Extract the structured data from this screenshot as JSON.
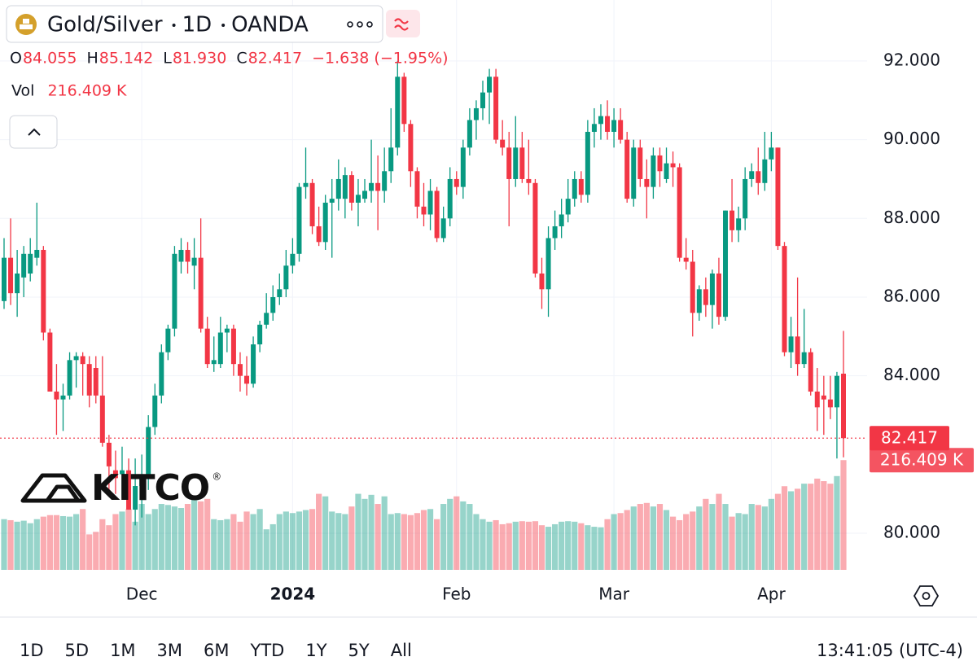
{
  "header": {
    "symbol": "Gold/Silver",
    "interval": "1D",
    "source": "OANDA"
  },
  "legend": {
    "items": [
      {
        "key": "O",
        "value": "84.055"
      },
      {
        "key": "H",
        "value": "85.142"
      },
      {
        "key": "L",
        "value": "81.930"
      },
      {
        "key": "C",
        "value": "82.417"
      }
    ],
    "change": "−1.638 (−1.95%)",
    "volume": {
      "key": "Vol",
      "value": "216.409 K"
    }
  },
  "logo": {
    "text": "KITCO",
    "mark": "®"
  },
  "chart_data": {
    "type": "candlestick",
    "categories": [
      null,
      null,
      null,
      null,
      null,
      null,
      null,
      null,
      null,
      null,
      null,
      null,
      null,
      null,
      null,
      null,
      null,
      null,
      null,
      null,
      null,
      "Dec",
      null,
      null,
      null,
      null,
      null,
      null,
      null,
      null,
      null,
      null,
      null,
      null,
      null,
      null,
      null,
      null,
      null,
      null,
      null,
      null,
      null,
      null,
      "2024",
      null,
      null,
      null,
      null,
      null,
      null,
      null,
      null,
      null,
      null,
      null,
      null,
      null,
      null,
      null,
      null,
      null,
      null,
      null,
      null,
      null,
      null,
      null,
      null,
      "Feb",
      null,
      null,
      null,
      null,
      null,
      null,
      null,
      null,
      null,
      null,
      null,
      null,
      null,
      null,
      null,
      null,
      null,
      null,
      null,
      null,
      null,
      null,
      null,
      "Mar",
      null,
      null,
      null,
      null,
      null,
      null,
      null,
      null,
      null,
      null,
      null,
      null,
      null,
      null,
      null,
      null,
      null,
      null,
      null,
      null,
      null,
      null,
      null,
      "Apr",
      null,
      null,
      null,
      null,
      null,
      null,
      null,
      null,
      null,
      null,
      null
    ],
    "candles": [
      [
        85.9,
        87.5,
        85.7,
        87.0
      ],
      [
        87.0,
        88.0,
        85.8,
        86.1
      ],
      [
        86.1,
        87.2,
        85.5,
        86.6
      ],
      [
        86.5,
        87.3,
        86.0,
        87.1
      ],
      [
        86.6,
        87.5,
        86.4,
        87.1
      ],
      [
        87.0,
        88.4,
        86.8,
        87.2
      ],
      [
        87.2,
        87.3,
        84.9,
        85.1
      ],
      [
        85.1,
        85.2,
        83.6,
        83.6
      ],
      [
        83.6,
        84.3,
        82.5,
        83.4
      ],
      [
        83.4,
        83.8,
        82.6,
        83.5
      ],
      [
        83.5,
        84.6,
        83.4,
        84.4
      ],
      [
        84.4,
        84.6,
        83.7,
        84.5
      ],
      [
        84.5,
        84.6,
        83.5,
        84.3
      ],
      [
        84.3,
        84.5,
        83.2,
        83.5
      ],
      [
        84.2,
        84.5,
        83.3,
        83.5
      ],
      [
        83.5,
        84.5,
        82.2,
        82.3
      ],
      [
        82.3,
        82.5,
        81.0,
        81.7
      ],
      [
        81.6,
        82.1,
        81.0,
        81.4
      ],
      [
        81.5,
        82.2,
        80.9,
        81.6
      ],
      [
        81.6,
        81.9,
        80.6,
        80.6
      ],
      [
        80.6,
        81.9,
        80.2,
        81.2
      ],
      [
        81.2,
        82.0,
        80.4,
        81.4
      ],
      [
        81.4,
        83.0,
        81.1,
        82.7
      ],
      [
        82.7,
        83.8,
        82.5,
        83.5
      ],
      [
        83.5,
        84.8,
        83.3,
        84.6
      ],
      [
        84.6,
        85.3,
        84.4,
        85.2
      ],
      [
        85.2,
        87.3,
        85.0,
        87.1
      ],
      [
        86.9,
        87.5,
        86.6,
        87.2
      ],
      [
        87.2,
        87.4,
        86.6,
        86.9
      ],
      [
        86.8,
        87.5,
        86.2,
        87.0
      ],
      [
        87.0,
        88.0,
        85.1,
        85.2
      ],
      [
        85.2,
        85.5,
        84.2,
        84.3
      ],
      [
        84.3,
        85.0,
        84.1,
        84.4
      ],
      [
        84.3,
        85.5,
        84.2,
        85.1
      ],
      [
        85.1,
        85.3,
        84.6,
        85.2
      ],
      [
        85.2,
        85.3,
        84.0,
        84.3
      ],
      [
        84.3,
        84.6,
        83.6,
        84.0
      ],
      [
        84.0,
        84.5,
        83.5,
        83.8
      ],
      [
        83.8,
        85.0,
        83.7,
        84.8
      ],
      [
        84.8,
        85.4,
        84.6,
        85.3
      ],
      [
        85.3,
        86.1,
        85.2,
        85.6
      ],
      [
        85.6,
        86.3,
        85.4,
        86.0
      ],
      [
        86.0,
        86.6,
        85.8,
        86.2
      ],
      [
        86.2,
        87.2,
        86.0,
        86.8
      ],
      [
        86.8,
        87.5,
        86.6,
        87.1
      ],
      [
        87.1,
        88.9,
        86.9,
        88.8
      ],
      [
        88.8,
        89.8,
        88.5,
        88.9
      ],
      [
        88.9,
        89.0,
        87.6,
        87.8
      ],
      [
        87.8,
        88.3,
        87.3,
        87.4
      ],
      [
        87.4,
        88.6,
        87.2,
        88.4
      ],
      [
        88.4,
        89.0,
        87.0,
        88.5
      ],
      [
        88.5,
        89.5,
        88.2,
        89.0
      ],
      [
        88.5,
        89.3,
        88.0,
        89.1
      ],
      [
        89.1,
        89.2,
        88.2,
        88.4
      ],
      [
        88.4,
        89.0,
        87.8,
        88.6
      ],
      [
        88.5,
        89.0,
        88.4,
        88.7
      ],
      [
        88.7,
        90.0,
        88.4,
        88.9
      ],
      [
        88.9,
        89.6,
        87.7,
        88.7
      ],
      [
        88.7,
        89.8,
        88.4,
        89.2
      ],
      [
        89.2,
        90.8,
        88.9,
        89.8
      ],
      [
        89.8,
        92.0,
        89.6,
        91.6
      ],
      [
        91.6,
        91.7,
        90.2,
        90.4
      ],
      [
        90.4,
        90.5,
        88.8,
        89.2
      ],
      [
        89.2,
        89.3,
        88.0,
        88.3
      ],
      [
        88.3,
        88.9,
        87.8,
        88.1
      ],
      [
        88.1,
        89.0,
        87.7,
        88.7
      ],
      [
        88.7,
        88.8,
        87.4,
        87.5
      ],
      [
        87.5,
        88.3,
        87.4,
        88.0
      ],
      [
        88.0,
        89.3,
        87.8,
        89.0
      ],
      [
        89.0,
        89.2,
        88.6,
        88.8
      ],
      [
        88.8,
        90.0,
        88.5,
        89.8
      ],
      [
        89.8,
        90.8,
        89.6,
        90.5
      ],
      [
        90.5,
        91.0,
        90.0,
        90.8
      ],
      [
        90.8,
        91.5,
        90.5,
        91.2
      ],
      [
        91.2,
        91.8,
        90.4,
        91.6
      ],
      [
        91.6,
        91.8,
        89.9,
        90.0
      ],
      [
        90.0,
        90.5,
        89.6,
        89.8
      ],
      [
        89.8,
        90.2,
        87.8,
        89.0
      ],
      [
        89.0,
        90.6,
        88.8,
        89.8
      ],
      [
        89.8,
        90.2,
        88.9,
        89.0
      ],
      [
        89.0,
        90.0,
        88.6,
        88.9
      ],
      [
        88.9,
        89.0,
        86.5,
        86.6
      ],
      [
        86.6,
        87.0,
        85.7,
        86.2
      ],
      [
        86.2,
        87.8,
        85.5,
        87.5
      ],
      [
        87.5,
        88.2,
        87.2,
        87.8
      ],
      [
        87.8,
        88.5,
        87.5,
        88.1
      ],
      [
        88.1,
        89.0,
        87.9,
        88.5
      ],
      [
        88.5,
        89.2,
        88.3,
        89.0
      ],
      [
        89.0,
        89.2,
        88.4,
        88.6
      ],
      [
        88.6,
        90.5,
        88.4,
        90.2
      ],
      [
        90.2,
        90.8,
        89.8,
        90.4
      ],
      [
        90.4,
        90.9,
        90.0,
        90.6
      ],
      [
        90.6,
        91.0,
        90.0,
        90.2
      ],
      [
        90.2,
        90.8,
        89.8,
        90.5
      ],
      [
        90.5,
        90.8,
        89.9,
        90.0
      ],
      [
        90.0,
        90.2,
        88.4,
        88.5
      ],
      [
        88.5,
        90.0,
        88.3,
        89.8
      ],
      [
        89.8,
        90.0,
        88.8,
        89.0
      ],
      [
        89.0,
        89.5,
        88.0,
        88.8
      ],
      [
        88.8,
        89.8,
        88.5,
        89.6
      ],
      [
        89.6,
        89.8,
        88.8,
        89.2
      ],
      [
        89.0,
        89.8,
        88.9,
        89.4
      ],
      [
        89.4,
        89.7,
        88.8,
        89.3
      ],
      [
        89.3,
        89.4,
        86.9,
        87.0
      ],
      [
        87.0,
        87.5,
        86.7,
        86.9
      ],
      [
        86.9,
        87.2,
        85.0,
        85.6
      ],
      [
        85.6,
        86.3,
        85.4,
        86.2
      ],
      [
        86.2,
        86.5,
        85.5,
        85.8
      ],
      [
        85.8,
        86.7,
        85.2,
        86.6
      ],
      [
        86.6,
        87.0,
        85.3,
        85.5
      ],
      [
        85.5,
        88.2,
        85.4,
        88.2
      ],
      [
        88.2,
        89.0,
        87.4,
        87.7
      ],
      [
        87.7,
        88.3,
        87.4,
        88.0
      ],
      [
        88.0,
        89.3,
        87.7,
        89.0
      ],
      [
        89.0,
        89.4,
        88.8,
        89.2
      ],
      [
        89.2,
        89.8,
        88.6,
        88.9
      ],
      [
        88.9,
        90.2,
        88.7,
        89.5
      ],
      [
        89.5,
        90.2,
        89.2,
        89.8
      ],
      [
        89.8,
        89.8,
        87.2,
        87.3
      ],
      [
        87.3,
        87.4,
        84.5,
        84.6
      ],
      [
        84.6,
        85.5,
        84.2,
        85.0
      ],
      [
        85.0,
        86.5,
        84.0,
        84.3
      ],
      [
        84.3,
        85.7,
        84.2,
        84.6
      ],
      [
        84.6,
        84.7,
        83.5,
        83.6
      ],
      [
        83.6,
        84.2,
        82.6,
        83.2
      ],
      [
        83.5,
        84.0,
        82.5,
        83.4
      ],
      [
        83.4,
        84.0,
        82.9,
        83.2
      ],
      [
        83.2,
        84.1,
        81.9,
        84.0
      ],
      [
        84.055,
        85.142,
        81.93,
        82.417
      ]
    ],
    "volume": [
      100,
      98,
      95,
      97,
      92,
      100,
      105,
      108,
      108,
      106,
      105,
      110,
      120,
      70,
      75,
      100,
      88,
      110,
      115,
      120,
      95,
      130,
      110,
      120,
      130,
      128,
      125,
      122,
      130,
      140,
      135,
      140,
      100,
      98,
      100,
      110,
      95,
      115,
      110,
      120,
      80,
      90,
      110,
      115,
      112,
      115,
      118,
      120,
      150,
      145,
      115,
      112,
      110,
      125,
      150,
      140,
      148,
      130,
      145,
      110,
      112,
      110,
      108,
      112,
      118,
      120,
      100,
      130,
      140,
      145,
      135,
      130,
      110,
      100,
      95,
      98,
      90,
      92,
      95,
      96,
      95,
      96,
      88,
      85,
      90,
      95,
      96,
      95,
      92,
      88,
      85,
      84,
      100,
      110,
      112,
      118,
      125,
      130,
      132,
      125,
      130,
      118,
      105,
      98,
      110,
      115,
      125,
      140,
      130,
      150,
      130,
      105,
      112,
      110,
      130,
      128,
      125,
      140,
      150,
      165,
      155,
      160,
      170,
      170,
      180,
      175,
      170,
      185,
      216.409
    ],
    "ylim": [
      79.07,
      93.55
    ],
    "yticks": [
      {
        "value": 80,
        "label": "80.000"
      },
      {
        "value": 84,
        "label": "84.000"
      },
      {
        "value": 86,
        "label": "86.000"
      },
      {
        "value": 88,
        "label": "88.000"
      },
      {
        "value": 90,
        "label": "90.000"
      },
      {
        "value": 92,
        "label": "92.000"
      }
    ],
    "volume_ylim": [
      0,
      342
    ],
    "up_color": "#089981",
    "down_color": "#f23645",
    "grid": true,
    "last_price_label": "82.417",
    "last_volume_label": "216.409 K"
  },
  "toolbar": {
    "ranges": [
      "1D",
      "5D",
      "1M",
      "3M",
      "6M",
      "YTD",
      "1Y",
      "5Y",
      "All"
    ],
    "clock": "13:41:05 (UTC-4)"
  }
}
